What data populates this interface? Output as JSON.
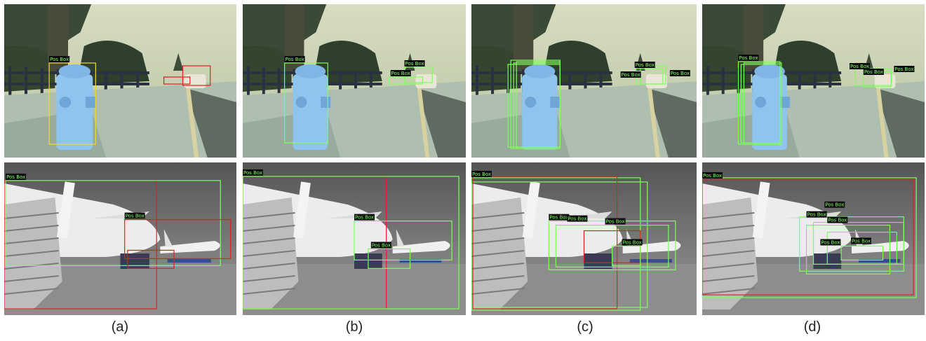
{
  "box_label": "Pos Box",
  "colors": {
    "pos_box": "#7dff5a",
    "gt_box": "#e02020",
    "pred_box": "#f2d73a",
    "hydrant": "#8fc4ef",
    "sky_top": "#c9d2b3",
    "street": "#b9c6b8",
    "airport_sky": "#6f6f6f",
    "airport_ground": "#8a8a8a"
  },
  "captions": [
    "(a)",
    "(b)",
    "(c)",
    "(d)"
  ],
  "figure": {
    "rows": [
      {
        "name": "hydrant-row",
        "scene": "street with fire hydrant",
        "icon": "hydrant-photo-icon"
      },
      {
        "name": "airplane-row",
        "scene": "airport tarmac with airplane and stairs",
        "icon": "airplane-photo-icon"
      }
    ]
  }
}
